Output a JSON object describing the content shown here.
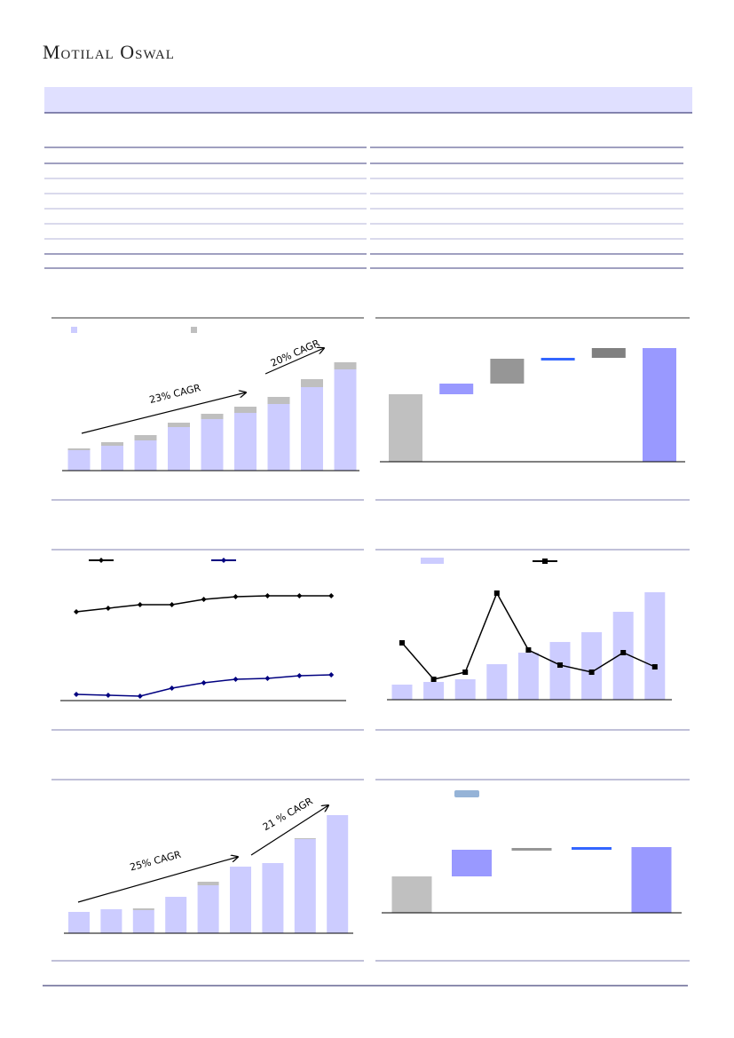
{
  "header": {
    "brand": "Motilal Oswal"
  },
  "chart_data": [
    {
      "type": "stacked-bar",
      "ylim": [
        0,
        170
      ],
      "series": [
        {
          "color": "#ccccff",
          "values": [
            23,
            28,
            34,
            49,
            58,
            65,
            75,
            94,
            114
          ]
        },
        {
          "color": "#bfbfbf",
          "values": [
            2,
            4,
            6,
            5,
            6,
            7,
            8,
            9,
            8
          ]
        }
      ],
      "annotations": [
        {
          "text": "23% CAGR"
        },
        {
          "text": "20% CAGR"
        }
      ]
    },
    {
      "type": "waterfall",
      "ylim": [
        0,
        160
      ],
      "values": [
        76,
        12,
        28,
        1,
        11,
        128
      ],
      "kinds": [
        "total",
        "delta",
        "delta",
        "delta",
        "delta",
        "total"
      ],
      "colors": [
        "#c0c0c0",
        "#9999ff",
        "#969696",
        "#3366ff",
        "#808080",
        "#9999ff"
      ]
    },
    {
      "type": "line",
      "ylim": [
        0,
        169
      ],
      "series": [
        {
          "color": "#000000",
          "values": [
            100,
            104,
            108,
            108,
            114,
            117,
            118,
            118,
            118
          ]
        },
        {
          "color": "#000080",
          "values": [
            7,
            6,
            5,
            14,
            20,
            24,
            25,
            28,
            29
          ]
        }
      ]
    },
    {
      "type": "bar-line",
      "ylim": [
        0,
        168
      ],
      "y2lim": [
        0,
        168
      ],
      "series": [
        {
          "color": "#ccccff",
          "values": [
            17,
            20,
            23,
            40,
            53,
            65,
            76,
            99,
            121
          ]
        },
        {
          "color": "#000000",
          "axis": "y2",
          "values": [
            64,
            23,
            31,
            120,
            56,
            39,
            31,
            53,
            37
          ]
        }
      ]
    },
    {
      "type": "stacked-bar",
      "ylim": [
        0,
        171
      ],
      "series": [
        {
          "color": "#ccccff",
          "values": [
            24,
            27,
            26,
            41,
            54,
            75,
            79,
            106,
            133
          ]
        },
        {
          "color": "#bfbfbf",
          "values": [
            0,
            0,
            2,
            0,
            4,
            0,
            0,
            1,
            0
          ]
        }
      ],
      "annotations": [
        {
          "text": "25% CAGR"
        },
        {
          "text": "21 % CAGR"
        }
      ]
    },
    {
      "type": "waterfall",
      "ylim": [
        0,
        148
      ],
      "values": [
        41,
        30,
        2,
        1,
        74
      ],
      "kinds": [
        "total",
        "delta",
        "delta",
        "delta",
        "total"
      ],
      "colors": [
        "#c0c0c0",
        "#9999ff",
        "#969696",
        "#3366ff",
        "#9999ff"
      ]
    }
  ]
}
